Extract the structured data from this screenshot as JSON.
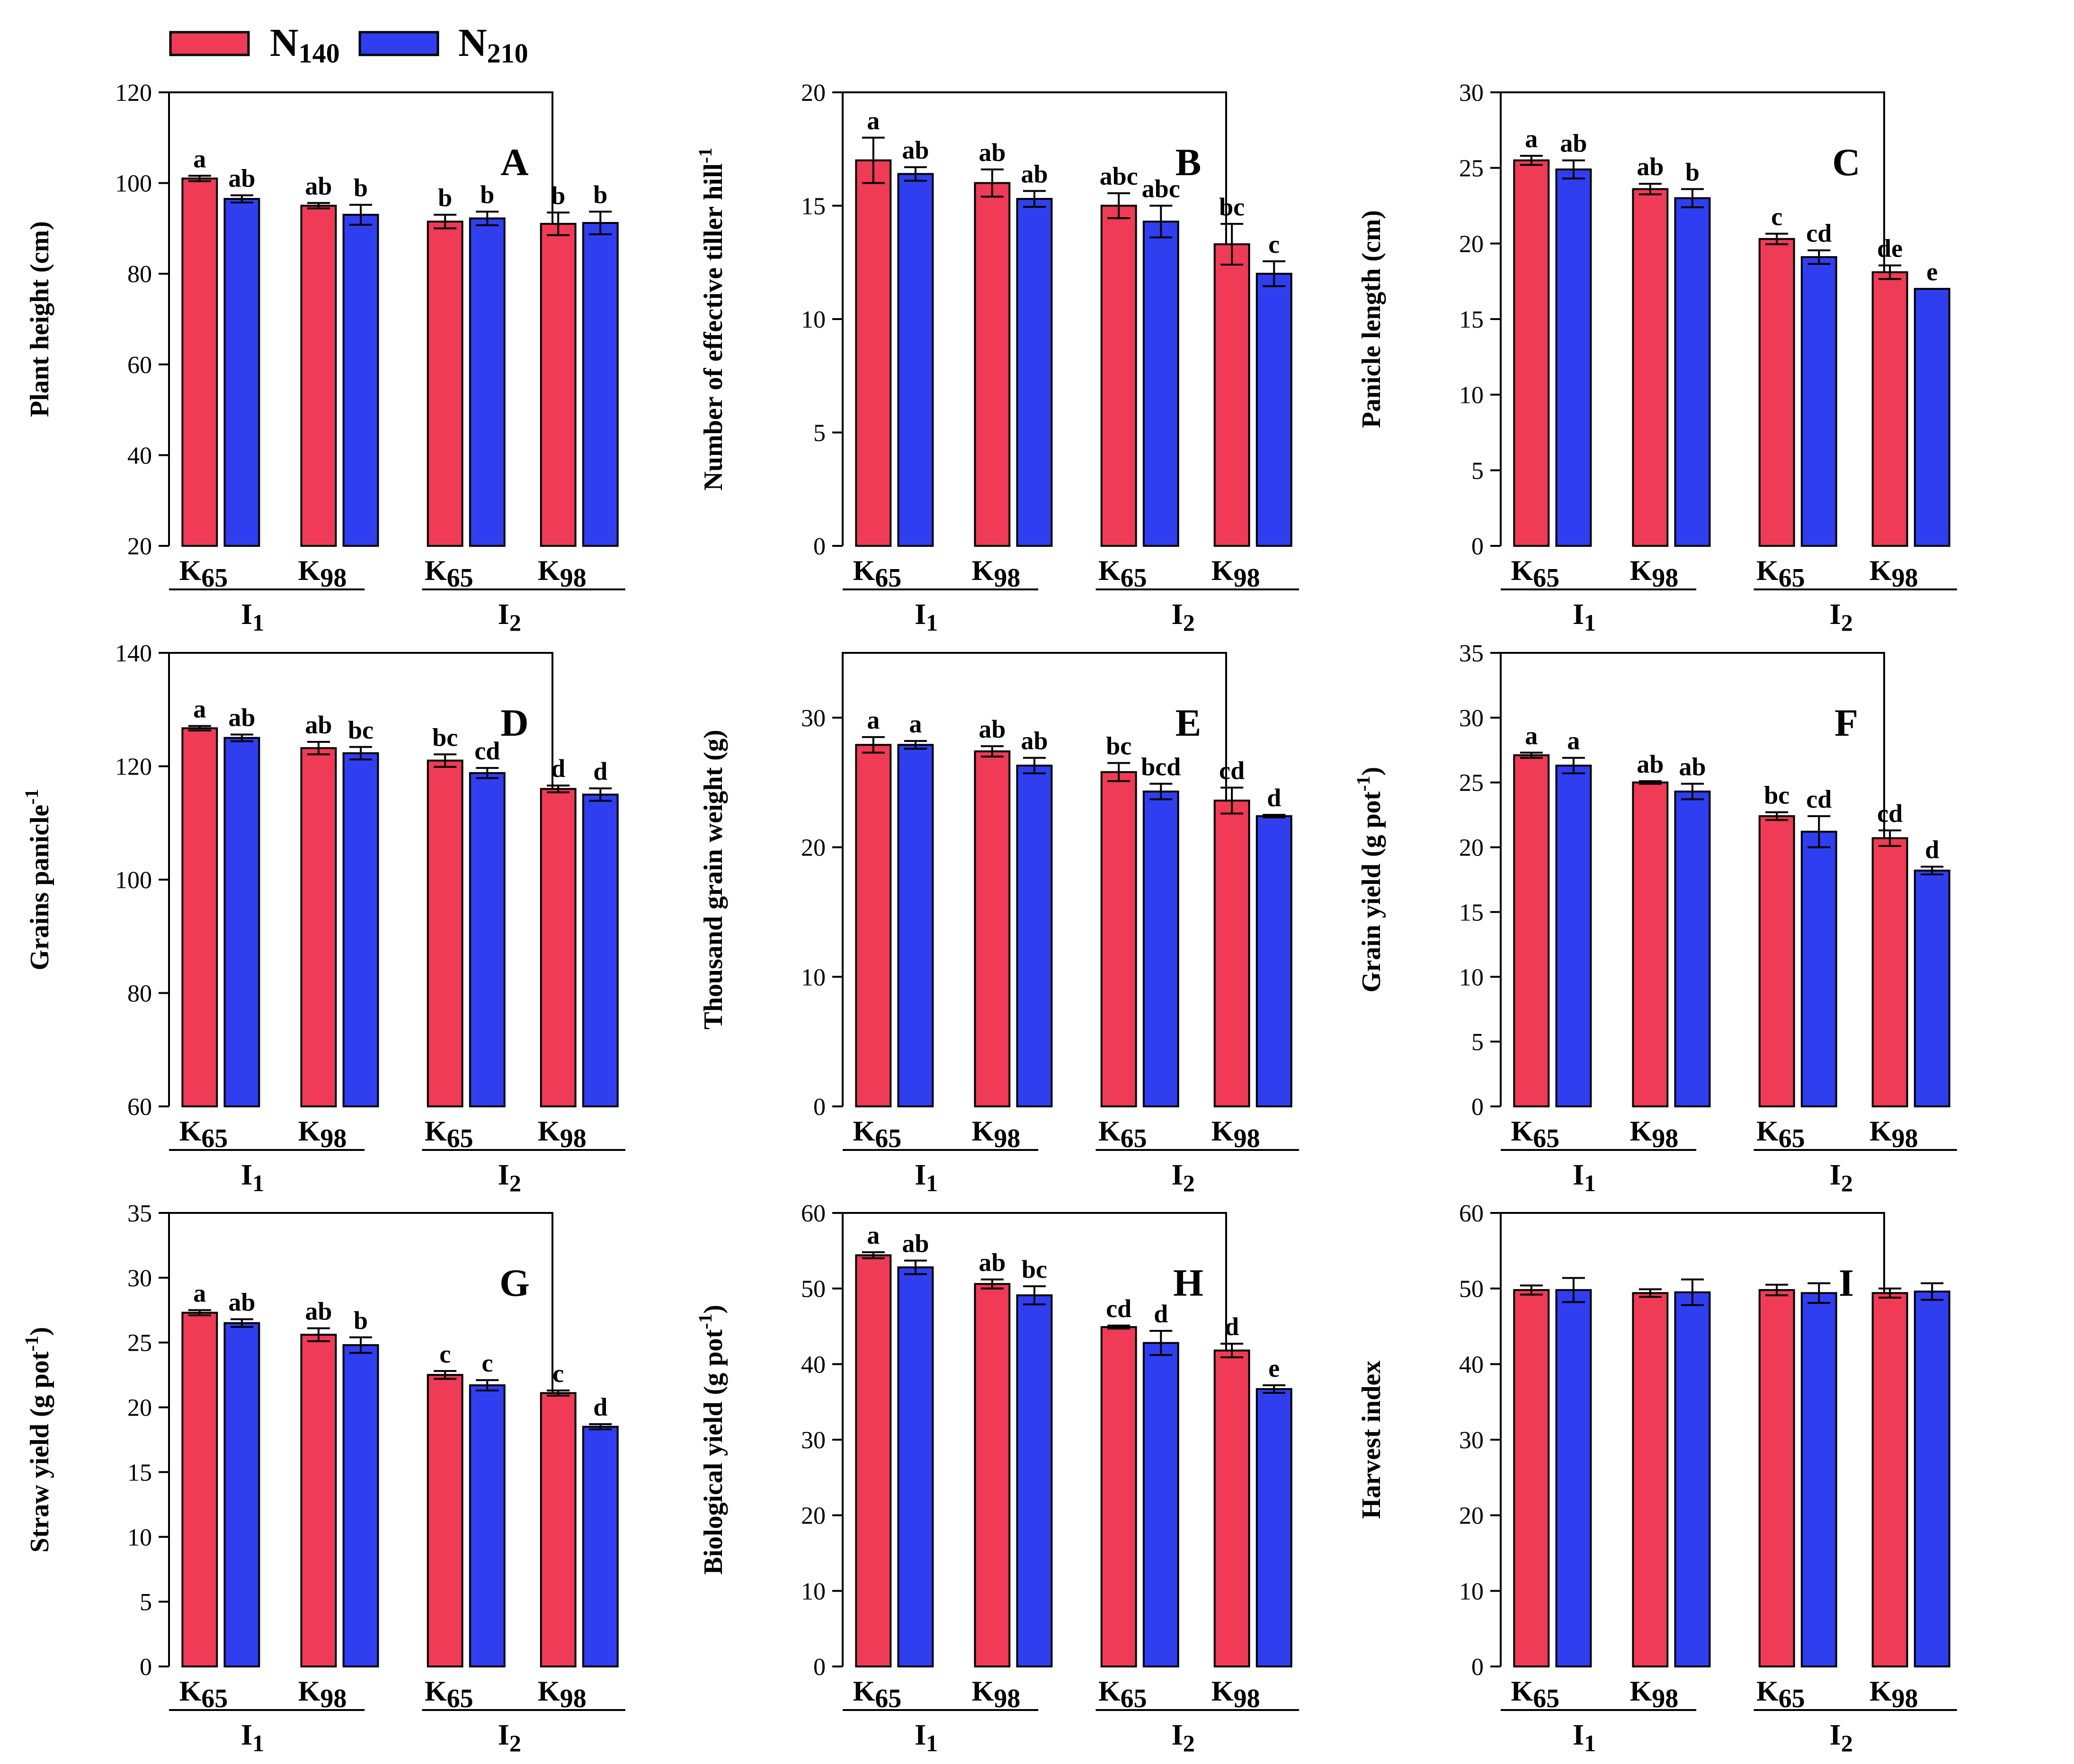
{
  "legend": {
    "N140": {
      "label": "N",
      "sub": "140",
      "color": "#ef3b55"
    },
    "N210": {
      "label": "N",
      "sub": "210",
      "color": "#2f3ff0"
    }
  },
  "groups": [
    {
      "label": "K",
      "sub": "65"
    },
    {
      "label": "K",
      "sub": "98"
    },
    {
      "label": "K",
      "sub": "65"
    },
    {
      "label": "K",
      "sub": "98"
    }
  ],
  "irrigation": [
    {
      "label": "I",
      "sub": "1"
    },
    {
      "label": "I",
      "sub": "2"
    }
  ],
  "chart_data": [
    {
      "panel": "A",
      "type": "bar",
      "ylabel": {
        "text": "Plant height (cm)",
        "sup": ""
      },
      "ylim": [
        20,
        120
      ],
      "yticks": [
        20,
        40,
        60,
        80,
        100,
        120
      ],
      "series": [
        {
          "name": "N140",
          "values": [
            101,
            95,
            91.5,
            91
          ],
          "errors": [
            0.6,
            0.6,
            1.5,
            2.5
          ],
          "letters": [
            "a",
            "ab",
            "b",
            "b"
          ]
        },
        {
          "name": "N210",
          "values": [
            96.5,
            93,
            92.2,
            91.2
          ],
          "errors": [
            0.8,
            2.2,
            1.5,
            2.5
          ],
          "letters": [
            "ab",
            "b",
            "b",
            "b"
          ]
        }
      ]
    },
    {
      "panel": "B",
      "type": "bar",
      "ylabel": {
        "text": "Number of effective tiller hill",
        "sup": "-1"
      },
      "ylim": [
        0,
        20
      ],
      "yticks": [
        0,
        5,
        10,
        15,
        20
      ],
      "series": [
        {
          "name": "N140",
          "values": [
            17,
            16,
            15,
            13.3
          ],
          "errors": [
            1,
            0.6,
            0.55,
            0.9
          ],
          "letters": [
            "a",
            "ab",
            "abc",
            "bc"
          ]
        },
        {
          "name": "N210",
          "values": [
            16.4,
            15.3,
            14.3,
            12
          ],
          "errors": [
            0.3,
            0.35,
            0.7,
            0.55
          ],
          "letters": [
            "ab",
            "ab",
            "abc",
            "c"
          ]
        }
      ]
    },
    {
      "panel": "C",
      "type": "bar",
      "ylabel": {
        "text": "Panicle length (cm)",
        "sup": ""
      },
      "ylim": [
        0,
        30
      ],
      "yticks": [
        0,
        5,
        10,
        15,
        20,
        25,
        30
      ],
      "series": [
        {
          "name": "N140",
          "values": [
            25.5,
            23.6,
            20.3,
            18.1
          ],
          "errors": [
            0.3,
            0.35,
            0.35,
            0.45
          ],
          "letters": [
            "a",
            "ab",
            "c",
            "de"
          ]
        },
        {
          "name": "N210",
          "values": [
            24.9,
            23,
            19.1,
            17
          ],
          "errors": [
            0.6,
            0.6,
            0.45,
            0
          ],
          "letters": [
            "ab",
            "b",
            "cd",
            "e"
          ]
        }
      ]
    },
    {
      "panel": "D",
      "type": "bar",
      "ylabel": {
        "text": "Grains panicle",
        "sup": "-1"
      },
      "ylim": [
        60,
        140
      ],
      "yticks": [
        60,
        80,
        100,
        120,
        140
      ],
      "series": [
        {
          "name": "N140",
          "values": [
            126.7,
            123.2,
            121,
            116
          ],
          "errors": [
            0.4,
            1.1,
            1.1,
            0.6
          ],
          "letters": [
            "a",
            "ab",
            "bc",
            "d"
          ]
        },
        {
          "name": "N210",
          "values": [
            125,
            122.3,
            118.8,
            115
          ],
          "errors": [
            0.6,
            1.1,
            0.9,
            1.1
          ],
          "letters": [
            "ab",
            "bc",
            "cd",
            "d"
          ]
        }
      ]
    },
    {
      "panel": "E",
      "type": "bar",
      "ylabel": {
        "text": "Thousand grain weight (g)",
        "sup": ""
      },
      "ylim": [
        0,
        35
      ],
      "yticks": [
        0,
        10,
        20,
        30
      ],
      "series": [
        {
          "name": "N140",
          "values": [
            27.9,
            27.4,
            25.8,
            23.6
          ],
          "errors": [
            0.6,
            0.4,
            0.7,
            1
          ],
          "letters": [
            "a",
            "ab",
            "bc",
            "cd"
          ]
        },
        {
          "name": "N210",
          "values": [
            27.9,
            26.3,
            24.3,
            22.4
          ],
          "errors": [
            0.3,
            0.6,
            0.6,
            0.1
          ],
          "letters": [
            "a",
            "ab",
            "bcd",
            "d"
          ]
        }
      ]
    },
    {
      "panel": "F",
      "type": "bar",
      "ylabel": {
        "text": "Grain yield (g pot",
        "sup": "-1",
        "tail": ")"
      },
      "ylim": [
        0,
        35
      ],
      "yticks": [
        0,
        5,
        10,
        15,
        20,
        25,
        30,
        35
      ],
      "series": [
        {
          "name": "N140",
          "values": [
            27.1,
            25,
            22.4,
            20.7
          ],
          "errors": [
            0.2,
            0.1,
            0.3,
            0.6
          ],
          "letters": [
            "a",
            "ab",
            "bc",
            "cd"
          ]
        },
        {
          "name": "N210",
          "values": [
            26.3,
            24.3,
            21.2,
            18.2
          ],
          "errors": [
            0.6,
            0.6,
            1.2,
            0.3
          ],
          "letters": [
            "a",
            "ab",
            "cd",
            "d"
          ]
        }
      ]
    },
    {
      "panel": "G",
      "type": "bar",
      "ylabel": {
        "text": "Straw yield (g pot",
        "sup": "-1",
        "tail": ")"
      },
      "ylim": [
        0,
        35
      ],
      "yticks": [
        0,
        5,
        10,
        15,
        20,
        25,
        30,
        35
      ],
      "series": [
        {
          "name": "N140",
          "values": [
            27.3,
            25.6,
            22.5,
            21.1
          ],
          "errors": [
            0.2,
            0.5,
            0.3,
            0.2
          ],
          "letters": [
            "a",
            "ab",
            "c",
            "c"
          ]
        },
        {
          "name": "N210",
          "values": [
            26.5,
            24.8,
            21.7,
            18.5
          ],
          "errors": [
            0.3,
            0.6,
            0.4,
            0.2
          ],
          "letters": [
            "ab",
            "b",
            "c",
            "d"
          ]
        }
      ]
    },
    {
      "panel": "H",
      "type": "bar",
      "ylabel": {
        "text": "Biological yield (g pot",
        "sup": "-1",
        "tail": ")"
      },
      "ylim": [
        0,
        60
      ],
      "yticks": [
        0,
        10,
        20,
        30,
        40,
        50,
        60
      ],
      "series": [
        {
          "name": "N140",
          "values": [
            54.4,
            50.6,
            44.9,
            41.8
          ],
          "errors": [
            0.4,
            0.6,
            0.2,
            0.9
          ],
          "letters": [
            "a",
            "ab",
            "cd",
            "d"
          ]
        },
        {
          "name": "N210",
          "values": [
            52.8,
            49.1,
            42.8,
            36.7
          ],
          "errors": [
            0.9,
            1.2,
            1.6,
            0.5
          ],
          "letters": [
            "ab",
            "bc",
            "d",
            "e"
          ]
        }
      ]
    },
    {
      "panel": "I",
      "type": "bar",
      "ylabel": {
        "text": "Harvest index",
        "sup": ""
      },
      "ylim": [
        0,
        60
      ],
      "yticks": [
        0,
        10,
        20,
        30,
        40,
        50,
        60
      ],
      "series": [
        {
          "name": "N140",
          "values": [
            49.8,
            49.4,
            49.8,
            49.4
          ],
          "errors": [
            0.6,
            0.5,
            0.7,
            0.6
          ],
          "letters": [
            "",
            "",
            "",
            ""
          ]
        },
        {
          "name": "N210",
          "values": [
            49.8,
            49.5,
            49.4,
            49.6
          ],
          "errors": [
            1.6,
            1.7,
            1.3,
            1.1
          ],
          "letters": [
            "",
            "",
            "",
            ""
          ]
        }
      ]
    }
  ]
}
